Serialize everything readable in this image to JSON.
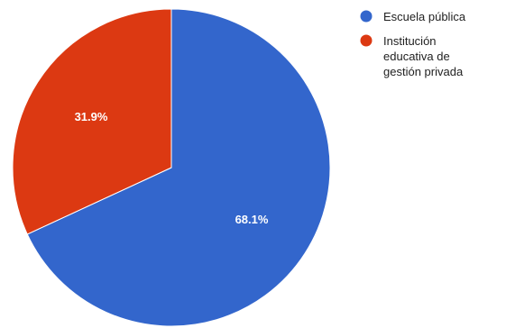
{
  "chart_data": {
    "type": "pie",
    "slices": [
      {
        "label": "Escuela pública",
        "value": 68.1,
        "color": "#3366cc",
        "display": "68.1%"
      },
      {
        "label": "Institución educativa de gestión privada",
        "value": 31.9,
        "color": "#dc3912",
        "display": "31.9%"
      }
    ],
    "legend": {
      "position": "top-right",
      "entries": [
        {
          "lines": [
            "Escuela pública"
          ]
        },
        {
          "lines": [
            "Institución",
            "educativa de",
            "gestión privada"
          ]
        }
      ]
    },
    "start_angle": "12 o'clock",
    "direction": "clockwise"
  }
}
